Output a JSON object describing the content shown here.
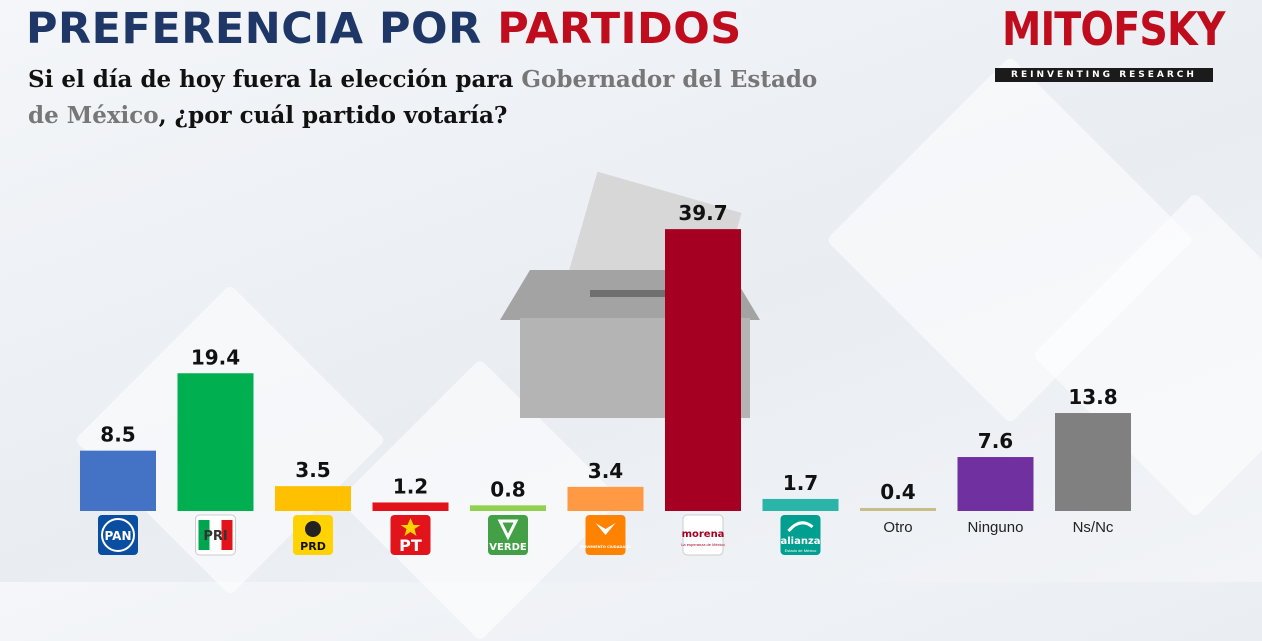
{
  "header": {
    "title_main": "PREFERENCIA POR",
    "title_accent": "PARTIDOS",
    "question_part1": "Si el día de hoy fuera la elección para",
    "question_highlight1": "Gobernador del Estado de",
    "question_highlight2": "México",
    "question_part2": ", ¿por cuál partido votaría?"
  },
  "brand": {
    "name": "MITOFSKY",
    "tagline": "REINVENTING RESEARCH",
    "color": "#c00d1e"
  },
  "chart_data": {
    "type": "bar",
    "title": "PREFERENCIA POR PARTIDOS",
    "categories": [
      "PAN",
      "PRI",
      "PRD",
      "PT",
      "VERDE",
      "MOVIMIENTO CIUDADANO",
      "morena",
      "alianza",
      "Otro",
      "Ninguno",
      "Ns/Nc"
    ],
    "values": [
      8.5,
      19.4,
      3.5,
      1.2,
      0.8,
      3.4,
      39.7,
      1.7,
      0.4,
      7.6,
      13.8
    ],
    "value_labels": [
      "8.5",
      "19.4",
      "3.5",
      "1.2",
      "0.8",
      "3.4",
      "39.7",
      "1.7",
      "0.4",
      "7.6",
      "13.8"
    ],
    "colors": [
      "#4472c4",
      "#00b050",
      "#ffc000",
      "#e3131b",
      "#92d050",
      "#ff9944",
      "#a50021",
      "#2bb5a8",
      "#c9bd8a",
      "#7030a0",
      "#808080"
    ],
    "logos": [
      {
        "type": "pan",
        "text": "PAN",
        "bg": "#0a4ea2"
      },
      {
        "type": "pri",
        "text": "PRI"
      },
      {
        "type": "prd",
        "text": "PRD",
        "bg": "#ffd200"
      },
      {
        "type": "pt",
        "text": "PT",
        "bg": "#e3131b"
      },
      {
        "type": "verde",
        "text": "VERDE",
        "bg": "#43a047"
      },
      {
        "type": "mc",
        "text": "MOVIMIENTO CIUDADANO",
        "bg": "#ff8300"
      },
      {
        "type": "morena",
        "text": "morena",
        "sub": "La esperanza de México"
      },
      {
        "type": "alianza",
        "text": "alianza",
        "sub": "Estado de México",
        "bg": "#009f8f"
      },
      {
        "type": "text",
        "text": "Otro"
      },
      {
        "type": "text",
        "text": "Ninguno"
      },
      {
        "type": "text",
        "text": "Ns/Nc"
      }
    ],
    "grid": false,
    "legend": "none"
  }
}
